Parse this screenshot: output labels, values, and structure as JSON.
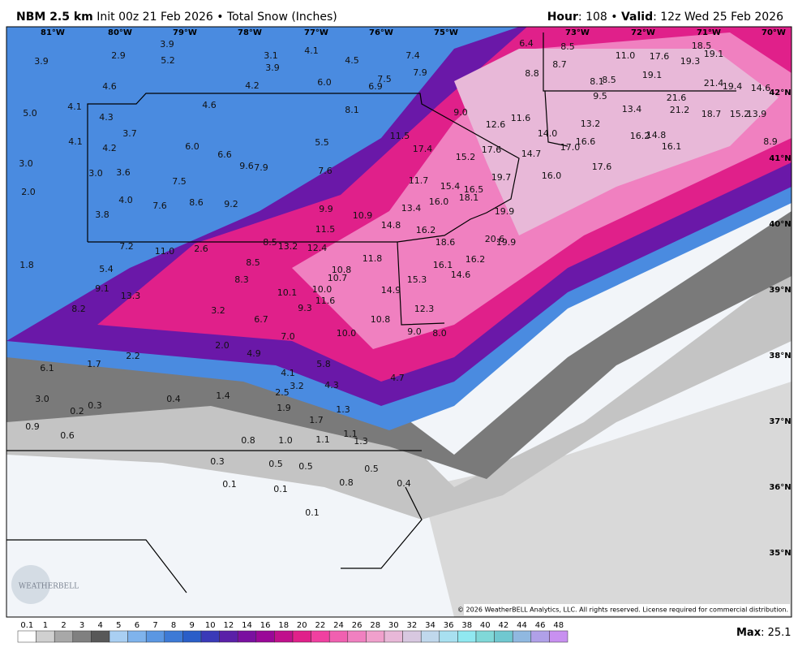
{
  "header": {
    "model": "NBM 2.5 km",
    "init": "Init 00z 21 Feb 2026 • Total Snow (Inches)",
    "hour_label": "Hour",
    "hour_value": ": 108 • ",
    "valid_label": "Valid",
    "valid_value": ": 12z Wed 25 Feb 2026"
  },
  "map": {
    "longitude_labels": [
      "81°W",
      "80°W",
      "79°W",
      "78°W",
      "77°W",
      "76°W",
      "75°W",
      "73°W",
      "72°W",
      "71°W",
      "70°W"
    ],
    "latitude_labels": [
      "42°N",
      "41°N",
      "40°N",
      "39°N",
      "38°N",
      "37°N",
      "36°N",
      "35°N"
    ],
    "point_labels": [
      "3.9",
      "2.9",
      "3.9",
      "5.2",
      "3.1",
      "4.1",
      "3.9",
      "4.5",
      "7.4",
      "6.4",
      "8.5",
      "11.0",
      "17.6",
      "18.5",
      "19.1",
      "19.3",
      "8.7",
      "8.8",
      "7.9",
      "7.5",
      "6.9",
      "6.0",
      "4.2",
      "4.6",
      "19.1",
      "21.4",
      "19.4",
      "14.6",
      "8.1",
      "8.5",
      "9.5",
      "5.0",
      "4.1",
      "4.3",
      "4.6",
      "8.1",
      "9.0",
      "11.6",
      "12.6",
      "13.4",
      "21.6",
      "21.2",
      "18.7",
      "15.2",
      "13.9",
      "13.2",
      "14.0",
      "3.7",
      "4.1",
      "4.2",
      "6.0",
      "6.6",
      "5.5",
      "11.5",
      "17.4",
      "15.2",
      "17.6",
      "14.7",
      "17.0",
      "16.6",
      "16.2",
      "14.8",
      "16.1",
      "8.9",
      "3.0",
      "3.0",
      "3.6",
      "9.6",
      "7.9",
      "7.6",
      "11.7",
      "15.4",
      "19.7",
      "16.0",
      "17.6",
      "16.5",
      "18.1",
      "16.0",
      "2.0",
      "4.0",
      "7.5",
      "7.6",
      "8.6",
      "9.2",
      "9.9",
      "10.9",
      "13.4",
      "19.9",
      "3.8",
      "11.5",
      "14.8",
      "16.2",
      "18.6",
      "20.6",
      "19.9",
      "7.2",
      "11.0",
      "2.6",
      "8.5",
      "13.2",
      "12.4",
      "11.8",
      "16.2",
      "1.8",
      "5.4",
      "8.5",
      "16.1",
      "14.6",
      "10.8",
      "10.7",
      "15.3",
      "8.3",
      "9.1",
      "13.3",
      "10.1",
      "10.0",
      "14.9",
      "11.6",
      "9.3",
      "8.2",
      "3.2",
      "12.3",
      "6.7",
      "10.8",
      "7.0",
      "10.0",
      "9.0",
      "8.0",
      "2.0",
      "4.9",
      "2.2",
      "1.7",
      "5.8",
      "6.1",
      "4.1",
      "4.7",
      "3.2",
      "4.3",
      "2.5",
      "1.4",
      "0.4",
      "3.0",
      "0.3",
      "0.2",
      "1.9",
      "1.7",
      "0.9",
      "0.6",
      "1.3",
      "1.1",
      "1.0",
      "1.1",
      "1.3",
      "0.8",
      "0.3",
      "0.5",
      "0.5",
      "0.5",
      "0.1",
      "0.1",
      "0.8",
      "0.4",
      "0.1"
    ],
    "watermark": "WEATHERBELL",
    "copyright": "© 2026 WeatherBELL Analytics, LLC. All rights reserved. License required for commercial distribution."
  },
  "colorbar": {
    "labels": [
      "0.1",
      "1",
      "2",
      "3",
      "4",
      "5",
      "6",
      "7",
      "8",
      "9",
      "10",
      "12",
      "14",
      "16",
      "18",
      "20",
      "22",
      "24",
      "26",
      "28",
      "30",
      "32",
      "34",
      "36",
      "38",
      "40",
      "42",
      "44",
      "46",
      "48"
    ],
    "colors": [
      "#ffffff",
      "#d0d0d0",
      "#a8a8a8",
      "#808080",
      "#585858",
      "#a9cff2",
      "#7fb3ec",
      "#5b97e2",
      "#3d7ad6",
      "#2a5ec8",
      "#3a3ab8",
      "#5a20a8",
      "#7a10a0",
      "#9a0898",
      "#c0108c",
      "#e0208a",
      "#f040a0",
      "#f060b0",
      "#f080c0",
      "#f0a0cc",
      "#e8b8d8",
      "#d8c8e0",
      "#c0d8ec",
      "#a8e0f0",
      "#90e8f0",
      "#80d8d8",
      "#70c8d0",
      "#90b8e0",
      "#b0a0e8",
      "#c890f0"
    ],
    "max_label": "Max",
    "max_value": ": 25.1"
  }
}
